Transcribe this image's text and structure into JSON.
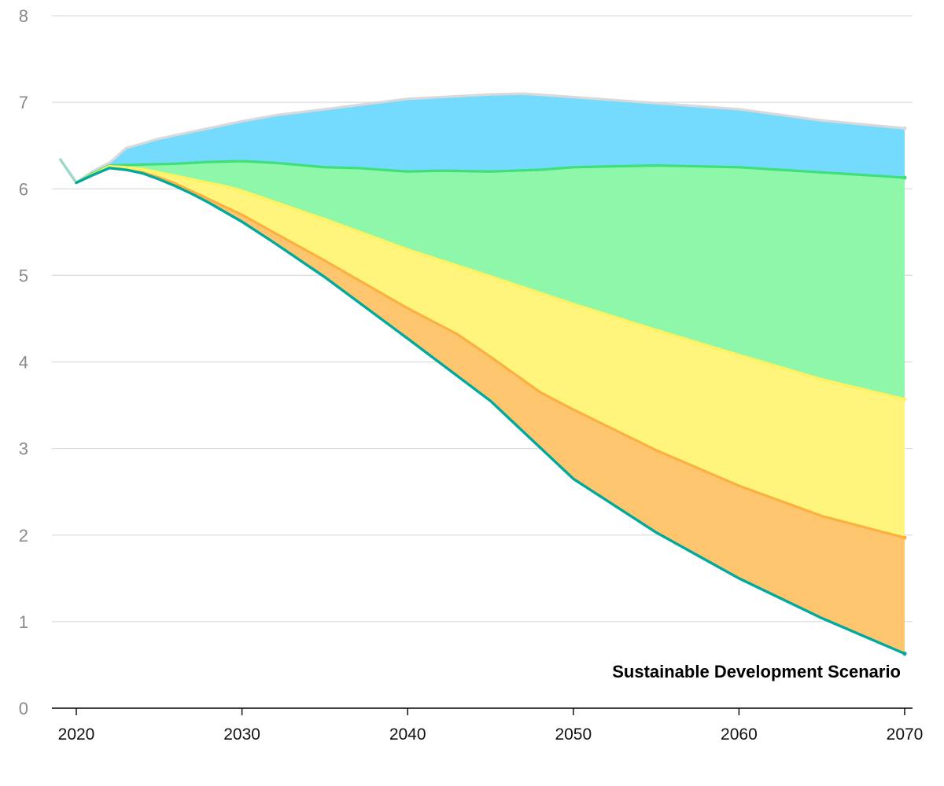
{
  "chart_data": {
    "type": "area",
    "title": "",
    "annotation": "Sustainable Development Scenario",
    "xlabel": "",
    "ylabel": "",
    "xlim": [
      2018.6,
      2071
    ],
    "ylim": [
      0,
      8
    ],
    "grid": true,
    "y_ticks": [
      0,
      1,
      2,
      3,
      4,
      5,
      6,
      7,
      8
    ],
    "x_ticks": [
      2020,
      2030,
      2040,
      2050,
      2060,
      2070
    ],
    "historical_line": {
      "color": "#9ed8cc",
      "points": [
        [
          2019,
          6.35
        ],
        [
          2020,
          6.07
        ],
        [
          2021,
          6.2
        ],
        [
          2022,
          6.3
        ]
      ]
    },
    "series": [
      {
        "color": "#00a99d",
        "fill": null,
        "points": [
          [
            2020,
            6.07
          ],
          [
            2021,
            6.16
          ],
          [
            2022,
            6.24
          ],
          [
            2023,
            6.22
          ],
          [
            2024,
            6.18
          ],
          [
            2025,
            6.11
          ],
          [
            2026,
            6.03
          ],
          [
            2027,
            5.94
          ],
          [
            2028,
            5.84
          ],
          [
            2029,
            5.73
          ],
          [
            2030,
            5.62
          ],
          [
            2032,
            5.37
          ],
          [
            2035,
            4.98
          ],
          [
            2040,
            4.27
          ],
          [
            2045,
            3.55
          ],
          [
            2050,
            2.65
          ],
          [
            2055,
            2.03
          ],
          [
            2060,
            1.5
          ],
          [
            2065,
            1.04
          ],
          [
            2070,
            0.63
          ]
        ]
      },
      {
        "color": "#fbb040",
        "fill": "#fdc66e",
        "points": [
          [
            2020,
            6.07
          ],
          [
            2021,
            6.16
          ],
          [
            2022,
            6.24
          ],
          [
            2023,
            6.22
          ],
          [
            2024,
            6.19
          ],
          [
            2025,
            6.13
          ],
          [
            2026,
            6.06
          ],
          [
            2027,
            5.97
          ],
          [
            2028,
            5.88
          ],
          [
            2029,
            5.79
          ],
          [
            2030,
            5.7
          ],
          [
            2035,
            5.17
          ],
          [
            2040,
            4.62
          ],
          [
            2043,
            4.32
          ],
          [
            2045,
            4.06
          ],
          [
            2048,
            3.65
          ],
          [
            2050,
            3.45
          ],
          [
            2055,
            2.98
          ],
          [
            2060,
            2.57
          ],
          [
            2065,
            2.22
          ],
          [
            2070,
            1.97
          ]
        ]
      },
      {
        "color": "#fff261",
        "fill": "#fff47c",
        "points": [
          [
            2020,
            6.07
          ],
          [
            2021,
            6.17
          ],
          [
            2022,
            6.26
          ],
          [
            2023,
            6.25
          ],
          [
            2024,
            6.23
          ],
          [
            2025,
            6.19
          ],
          [
            2026,
            6.15
          ],
          [
            2027,
            6.11
          ],
          [
            2028,
            6.07
          ],
          [
            2029,
            6.03
          ],
          [
            2030,
            5.98
          ],
          [
            2035,
            5.65
          ],
          [
            2040,
            5.3
          ],
          [
            2045,
            4.99
          ],
          [
            2050,
            4.67
          ],
          [
            2055,
            4.37
          ],
          [
            2060,
            4.08
          ],
          [
            2065,
            3.8
          ],
          [
            2070,
            3.57
          ]
        ]
      },
      {
        "color": "#3fe07a",
        "fill": "#8ef7a9",
        "points": [
          [
            2020,
            6.07
          ],
          [
            2021,
            6.18
          ],
          [
            2022,
            6.27
          ],
          [
            2024,
            6.28
          ],
          [
            2026,
            6.29
          ],
          [
            2028,
            6.31
          ],
          [
            2030,
            6.32
          ],
          [
            2032,
            6.3
          ],
          [
            2035,
            6.25
          ],
          [
            2037,
            6.24
          ],
          [
            2040,
            6.2
          ],
          [
            2042,
            6.21
          ],
          [
            2045,
            6.2
          ],
          [
            2048,
            6.22
          ],
          [
            2050,
            6.25
          ],
          [
            2055,
            6.27
          ],
          [
            2060,
            6.25
          ],
          [
            2065,
            6.19
          ],
          [
            2070,
            6.13
          ]
        ]
      },
      {
        "color": "#d9d9d9",
        "fill": "#74dbff",
        "points": [
          [
            2020,
            6.07
          ],
          [
            2021,
            6.2
          ],
          [
            2022,
            6.3
          ],
          [
            2023,
            6.47
          ],
          [
            2025,
            6.58
          ],
          [
            2027,
            6.66
          ],
          [
            2030,
            6.78
          ],
          [
            2032,
            6.85
          ],
          [
            2035,
            6.92
          ],
          [
            2040,
            7.04
          ],
          [
            2045,
            7.09
          ],
          [
            2047,
            7.1
          ],
          [
            2050,
            7.06
          ],
          [
            2055,
            6.99
          ],
          [
            2060,
            6.92
          ],
          [
            2065,
            6.79
          ],
          [
            2070,
            6.7
          ]
        ]
      }
    ]
  }
}
